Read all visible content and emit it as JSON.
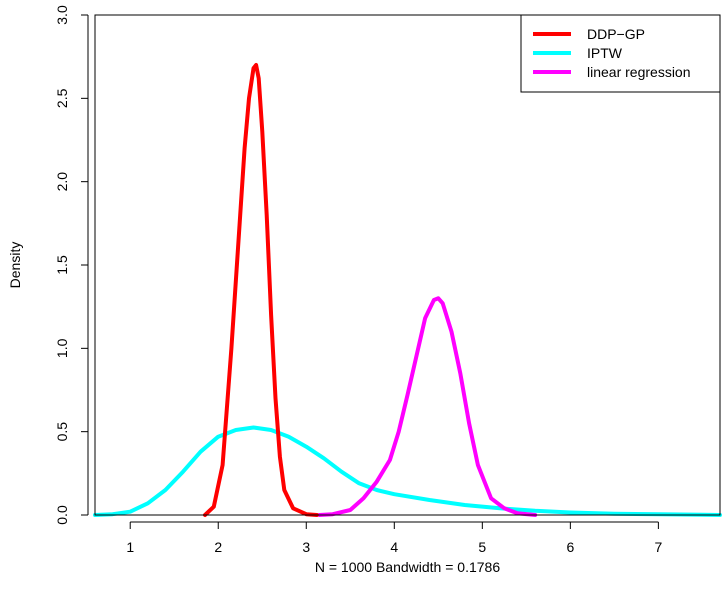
{
  "chart_data": {
    "type": "line",
    "title": "",
    "xlabel": "N = 1000   Bandwidth = 0.1786",
    "ylabel": "Density",
    "xlim": [
      0.6,
      7.7
    ],
    "ylim": [
      0,
      3.0
    ],
    "xticks": [
      1,
      2,
      3,
      4,
      5,
      6,
      7
    ],
    "xtick_labels": [
      "1",
      "2",
      "3",
      "4",
      "5",
      "6",
      "7"
    ],
    "yticks": [
      0,
      0.5,
      1.0,
      1.5,
      2.0,
      2.5,
      3.0
    ],
    "ytick_labels": [
      "0.0",
      "0.5",
      "1.0",
      "1.5",
      "2.0",
      "2.5",
      "3.0"
    ],
    "grid": false,
    "legend_position": "top-right",
    "series": [
      {
        "name": "DDP−GP",
        "color": "#ff0000",
        "x": [
          1.85,
          1.95,
          2.05,
          2.15,
          2.25,
          2.3,
          2.35,
          2.4,
          2.43,
          2.46,
          2.5,
          2.55,
          2.6,
          2.65,
          2.7,
          2.75,
          2.85,
          3.0,
          3.12
        ],
        "y": [
          0.0,
          0.05,
          0.3,
          1.0,
          1.8,
          2.2,
          2.5,
          2.68,
          2.7,
          2.62,
          2.3,
          1.8,
          1.2,
          0.7,
          0.35,
          0.15,
          0.04,
          0.005,
          0.0
        ]
      },
      {
        "name": "IPTW",
        "color": "#00ffff",
        "x": [
          0.6,
          0.8,
          1.0,
          1.2,
          1.4,
          1.6,
          1.8,
          2.0,
          2.2,
          2.4,
          2.6,
          2.8,
          3.0,
          3.2,
          3.4,
          3.6,
          3.8,
          4.0,
          4.4,
          4.8,
          5.2,
          5.6,
          6.0,
          6.5,
          7.0,
          7.5,
          7.7
        ],
        "y": [
          0.0,
          0.005,
          0.02,
          0.07,
          0.15,
          0.26,
          0.38,
          0.47,
          0.51,
          0.525,
          0.51,
          0.47,
          0.41,
          0.34,
          0.26,
          0.19,
          0.15,
          0.125,
          0.09,
          0.06,
          0.04,
          0.025,
          0.015,
          0.008,
          0.004,
          0.001,
          0.0
        ]
      },
      {
        "name": "linear regression",
        "color": "#ff00ff",
        "x": [
          3.15,
          3.3,
          3.5,
          3.65,
          3.8,
          3.95,
          4.05,
          4.15,
          4.25,
          4.35,
          4.45,
          4.5,
          4.55,
          4.65,
          4.75,
          4.85,
          4.95,
          5.1,
          5.25,
          5.4,
          5.6
        ],
        "y": [
          0.0,
          0.005,
          0.03,
          0.1,
          0.2,
          0.33,
          0.5,
          0.72,
          0.95,
          1.18,
          1.29,
          1.3,
          1.27,
          1.1,
          0.85,
          0.55,
          0.3,
          0.1,
          0.04,
          0.01,
          0.0
        ]
      }
    ]
  }
}
